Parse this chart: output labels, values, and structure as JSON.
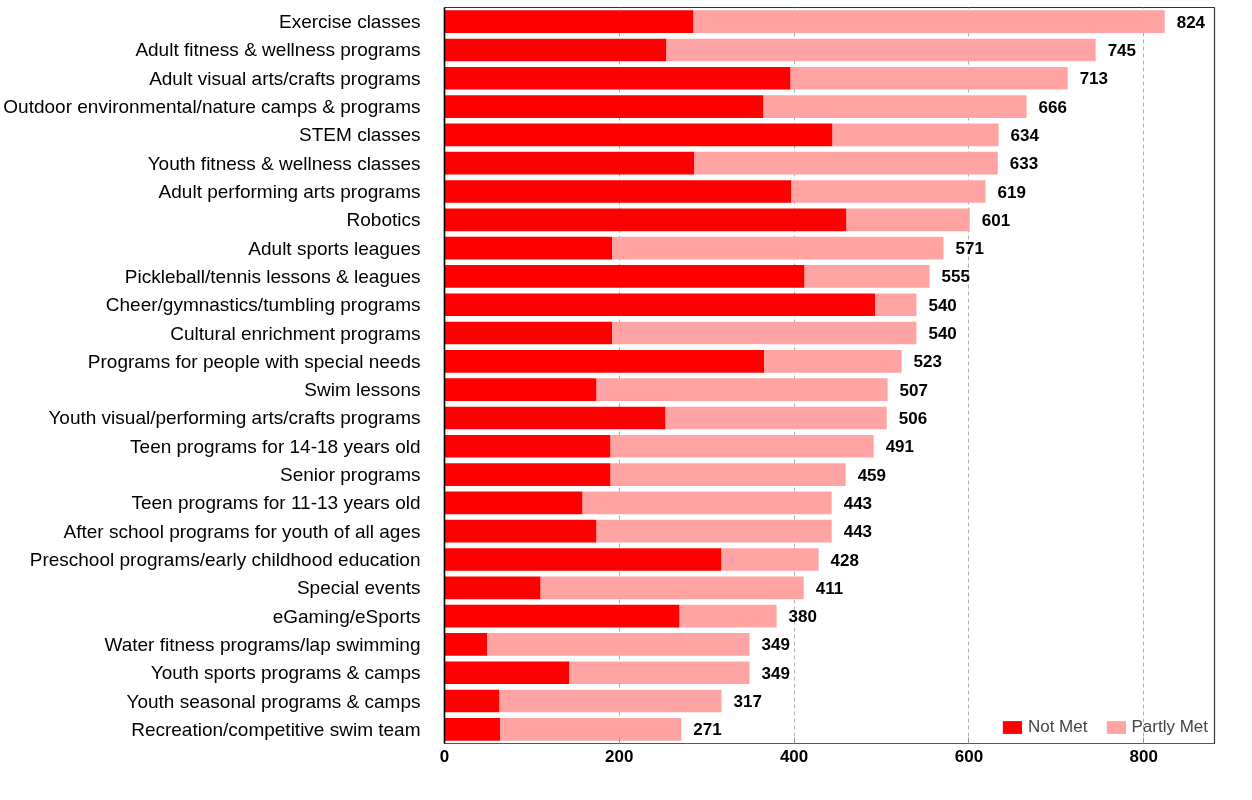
{
  "chart_data": {
    "type": "bar",
    "orientation": "horizontal",
    "stacked": true,
    "categories": [
      "Exercise classes",
      "Adult fitness & wellness programs",
      "Adult visual arts/crafts programs",
      "Outdoor environmental/nature camps & programs",
      "STEM classes",
      "Youth fitness & wellness classes",
      "Adult performing arts programs",
      "Robotics",
      "Adult sports leagues",
      "Pickleball/tennis lessons & leagues",
      "Cheer/gymnastics/tumbling programs",
      "Cultural enrichment programs",
      "Programs for people with special needs",
      "Swim lessons",
      "Youth visual/performing arts/crafts programs",
      "Teen programs for 14-18 years old",
      "Senior programs",
      "Teen programs for 11-13 years old",
      "After school programs for youth of all ages",
      "Preschool programs/early childhood education",
      "Special events",
      "eGaming/eSports",
      "Water fitness programs/lap swimming",
      "Youth sports programs & camps",
      "Youth seasonal programs & camps",
      "Recreation/competitive swim team"
    ],
    "series": [
      {
        "name": "Not Met",
        "color": "#ff0000",
        "values": [
          285,
          254,
          396,
          365,
          444,
          286,
          397,
          460,
          192,
          412,
          493,
          192,
          366,
          174,
          253,
          190,
          190,
          158,
          174,
          317,
          110,
          269,
          49,
          143,
          63,
          64
        ]
      },
      {
        "name": "Partly Met",
        "color": "#ffa3a3",
        "values": [
          539,
          491,
          317,
          301,
          190,
          347,
          222,
          141,
          379,
          143,
          47,
          348,
          157,
          333,
          253,
          301,
          269,
          285,
          269,
          111,
          301,
          111,
          300,
          206,
          254,
          207
        ]
      }
    ],
    "totals": [
      "824",
      "745",
      "713",
      "666",
      "634",
      "633",
      "619",
      "601",
      "571",
      "555",
      "540",
      "540",
      "523",
      "507",
      "506",
      "491",
      "459",
      "443",
      "443",
      "428",
      "411",
      "380",
      "349",
      "349",
      "317",
      "271"
    ],
    "xlim": [
      0,
      881
    ],
    "xticks": [
      0,
      200,
      400,
      600,
      800
    ],
    "grid": "x",
    "legend": "bottom right"
  }
}
